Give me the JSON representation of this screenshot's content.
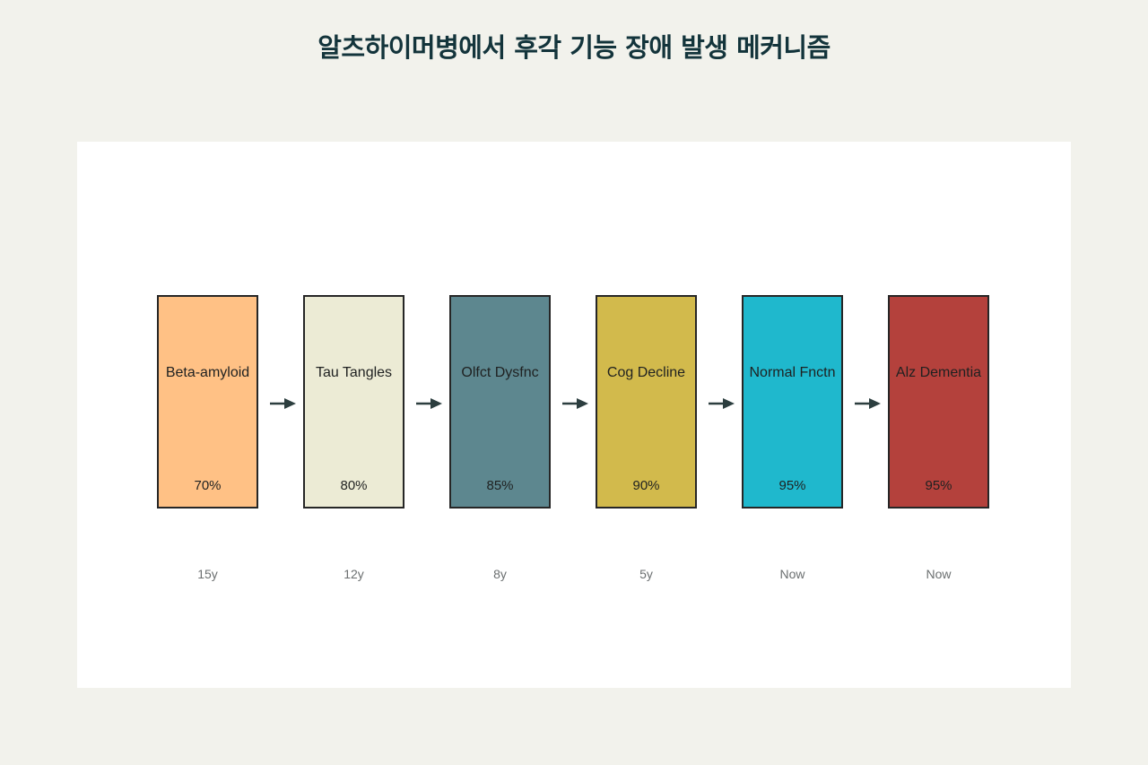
{
  "diagram": {
    "title": "알츠하이머병에서 후각 기능 장애 발생 메커니즘",
    "stages": [
      {
        "label": "Beta-amyloid",
        "percent": "70%",
        "time": "15y",
        "color": "#ffc185"
      },
      {
        "label": "Tau Tangles",
        "percent": "80%",
        "time": "12y",
        "color": "#ecebd5"
      },
      {
        "label": "Olfct Dysfnc",
        "percent": "85%",
        "time": "8y",
        "color": "#5d878f"
      },
      {
        "label": "Cog Decline",
        "percent": "90%",
        "time": "5y",
        "color": "#d2ba4c"
      },
      {
        "label": "Normal Fnctn",
        "percent": "95%",
        "time": "Now",
        "color": "#1fb8cd"
      },
      {
        "label": "Alz Dementia",
        "percent": "95%",
        "time": "Now",
        "color": "#b4413c"
      }
    ],
    "arrow_color": "#2c3e3f",
    "connector_icon": "arrow-right-icon"
  }
}
